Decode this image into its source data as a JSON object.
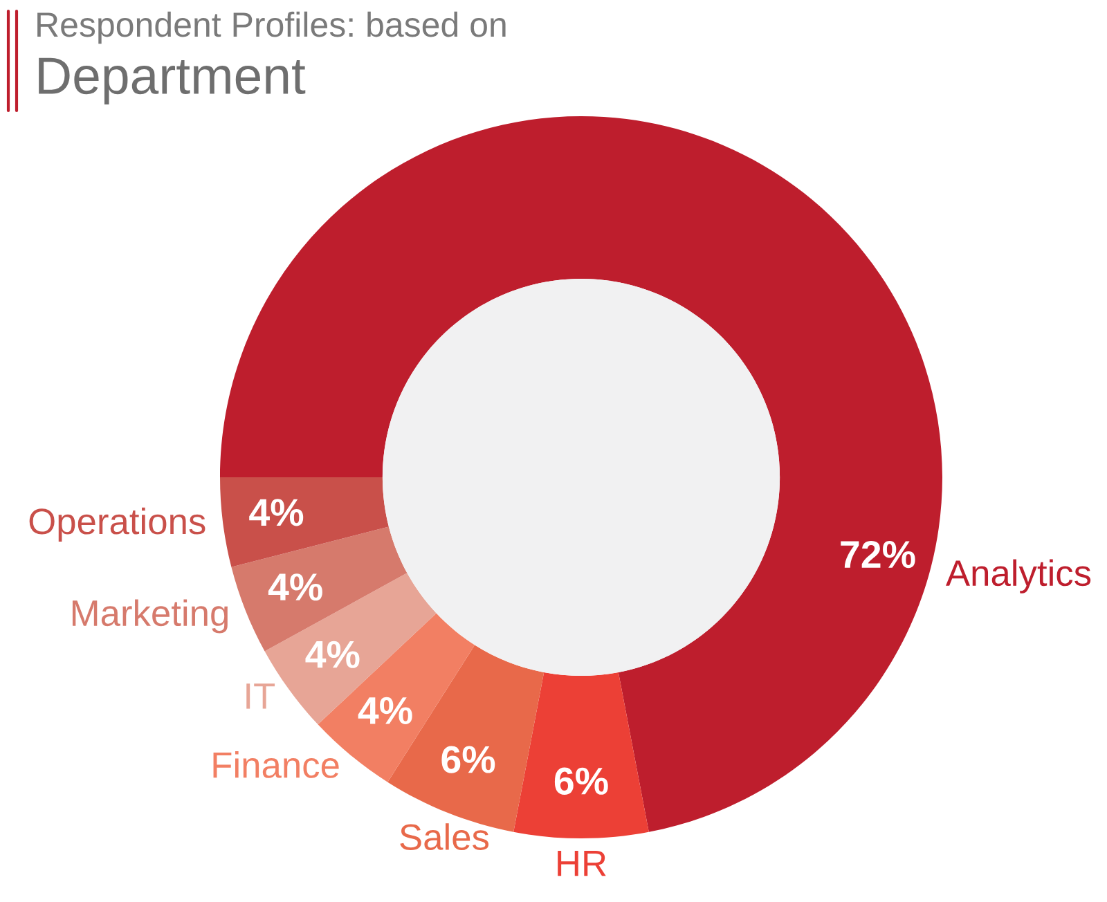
{
  "chart_data": {
    "type": "donut",
    "title": "Respondent Profiles: based on",
    "subtitle": "Department",
    "categories": [
      "Analytics",
      "HR",
      "Sales",
      "Finance",
      "IT",
      "Marketing",
      "Operations"
    ],
    "values": [
      72,
      6,
      6,
      4,
      4,
      4,
      4
    ],
    "colors": [
      "#be1e2d",
      "#ec4036",
      "#e8694a",
      "#f27f63",
      "#e7a596",
      "#d67a6c",
      "#c9504a"
    ],
    "value_labels": [
      "72%",
      "6%",
      "6%",
      "4%",
      "4%",
      "4%",
      "4%"
    ]
  }
}
